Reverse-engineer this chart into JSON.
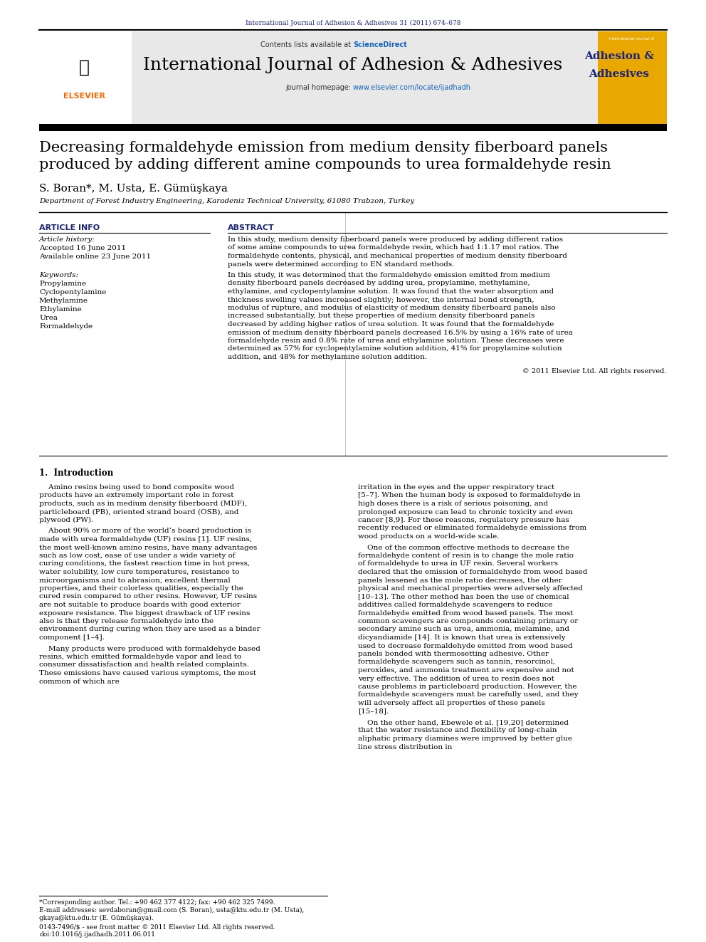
{
  "journal_ref": "International Journal of Adhesion & Adhesives 31 (2011) 674–678",
  "contents_text": "Contents lists available at ",
  "sciencedirect_text": "ScienceDirect",
  "journal_name": "International Journal of Adhesion & Adhesives",
  "journal_homepage_label": "journal homepage: ",
  "journal_url": "www.elsevier.com/locate/ijadhadh",
  "article_title_line1": "Decreasing formaldehyde emission from medium density fiberboard panels",
  "article_title_line2": "produced by adding different amine compounds to urea formaldehyde resin",
  "authors": "S. Boran*, M. Usta, E. Gümüşkaya",
  "affiliation": "Department of Forest Industry Engineering, Karadeniz Technical University, 61080 Trabzon, Turkey",
  "article_info_header": "ARTICLE INFO",
  "abstract_header": "ABSTRACT",
  "article_history_label": "Article history:",
  "accepted_date": "Accepted 16 June 2011",
  "available_online": "Available online 23 June 2011",
  "keywords_label": "Keywords:",
  "keywords": [
    "Propylamine",
    "Cyclopentylamine",
    "Methylamine",
    "Ethylamine",
    "Urea",
    "Formaldehyde"
  ],
  "abstract_para1": "In this study, medium density fiberboard panels were produced by adding different ratios of some amine compounds to urea formaldehyde resin, which had 1:1.17 mol ratios. The formaldehyde contents, physical, and mechanical properties of medium density fiberboard panels were determined according to EN standard methods.",
  "abstract_para2": "In this study, it was determined that the formaldehyde emission emitted from medium density fiberboard panels decreased by adding urea, propylamine, methylamine, ethylamine, and cyclopentylamine solution. It was found that the water absorption and thickness swelling values increased slightly; however, the internal bond strength, modulus of rupture, and modulus of elasticity of medium density fiberboard panels also increased substantially, but these properties of medium density fiberboard panels decreased by adding higher ratios of urea solution. It was found that the formaldehyde emission of medium density fiberboard panels decreased 16.5% by using a 16% rate of urea formaldehyde resin and 0.8% rate of urea and ethylamine solution. These decreases were determined as 57% for cyclopentylamine solution addition, 41% for propylamine solution addition, and 48% for methylamine solution addition.",
  "copyright": "© 2011 Elsevier Ltd. All rights reserved.",
  "intro_header": "1.  Introduction",
  "intro_col1_para1": "    Amino resins being used to bond composite wood products have an extremely important role in forest products, such as in medium density fiberboard (MDF), particleboard (PB), oriented strand board (OSB), and plywood (PW).",
  "intro_col1_para2": "    About 90% or more of the world’s board production is made with urea formaldehyde (UF) resins [1]. UF resins, the most well-known amino resins, have many advantages such as low cost, ease of use under a wide variety of curing conditions, the fastest reaction time in hot press, water solubility, low cure temperatures, resistance to microorganisms and to abrasion, excellent thermal properties, and their colorless qualities, especially the cured resin compared to other resins. However, UF resins are not suitable to produce boards with good exterior exposure resistance. The biggest drawback of UF resins also is that they release formaldehyde into the environment during curing when they are used as a binder component [1–4].",
  "intro_col1_para3": "    Many products were produced with formaldehyde based resins, which emitted formaldehyde vapor and lead to consumer dissatisfaction and health related complaints. These emissions have caused various symptoms, the most common of which are",
  "intro_col2_para1": "irritation in the eyes and the upper respiratory tract [5–7]. When the human body is exposed to formaldehyde in high doses there is a risk of serious poisoning, and prolonged exposure can lead to chronic toxicity and even cancer [8,9]. For these reasons, regulatory pressure has recently reduced or eliminated formaldehyde emissions from wood products on a world-wide scale.",
  "intro_col2_para2": "    One of the common effective methods to decrease the formaldehyde content of resin is to change the mole ratio of formaldehyde to urea in UF resin. Several workers declared that the emission of formaldehyde from wood based panels lessened as the mole ratio decreases, the other physical and mechanical properties were adversely affected [10–13]. The other method has been the use of chemical additives called formaldehyde scavengers to reduce formaldehyde emitted from wood based panels. The most common scavengers are compounds containing primary or secondary amine such as urea, ammonia, melamine, and dicyandiamide [14]. It is known that urea is extensively used to decrease formaldehyde emitted from wood based panels bonded with thermosetting adhesive. Other formaldehyde scavengers such as tannin, resorcinol, peroxides, and ammonia treatment are expensive and not very effective. The addition of urea to resin does not cause problems in particleboard production. However, the formaldehyde scavengers must be carefully used, and they will adversely affect all properties of these panels [15–18].",
  "intro_col2_para3": "    On the other hand, Ebewele et al. [19,20] determined that the water resistance and flexibility of long-chain aliphatic primary diamines were improved by better glue line stress distribution in",
  "footnote1": "*Corresponding author. Tel.: +90 462 377 4122; fax: +90 462 325 7499.",
  "footnote2": "E-mail addresses: sevdaboran@gmail.com (S. Boran), usta@ktu.edu.tr (M. Usta),",
  "footnote3": "gkaya@ktu.edu.tr (E. Gümüşkaya).",
  "footer1": "0143-7496/$ - see front matter © 2011 Elsevier Ltd. All rights reserved.",
  "footer2": "doi:10.1016/j.ijadhadh.2011.06.011",
  "bg_color": "#ffffff",
  "header_bg": "#e8e8e8",
  "journal_ref_color": "#1a237e",
  "sciencedirect_color": "#1565c0",
  "url_color": "#1565c0",
  "journal_name_color": "#000000",
  "title_color": "#000000",
  "section_header_color": "#1a237e",
  "intro_header_bold": true,
  "cover_bg": "#e8a800",
  "cover_text_color": "#1a237e"
}
